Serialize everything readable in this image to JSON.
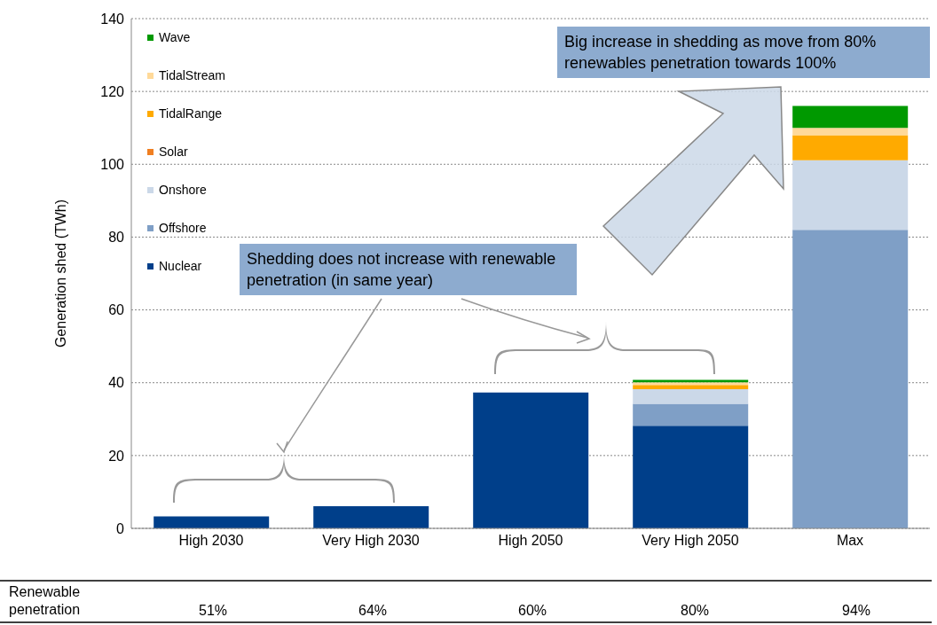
{
  "chart_data": {
    "type": "bar",
    "stacked": true,
    "ylabel": "Generation shed (TWh)",
    "categories": [
      "High 2030",
      "Very High 2030",
      "High 2050",
      "Very High 2050",
      "Max"
    ],
    "series": [
      {
        "name": "Nuclear",
        "color": "#003f8a",
        "values": [
          3.3,
          6.1,
          37.3,
          28.2,
          0
        ]
      },
      {
        "name": "Offshore",
        "color": "#7f9fc6",
        "values": [
          0,
          0,
          0,
          6.0,
          82.0
        ]
      },
      {
        "name": "Onshore",
        "color": "#cbd8e8",
        "values": [
          0,
          0,
          0,
          4.0,
          19.1
        ]
      },
      {
        "name": "Solar",
        "color": "#f07f21",
        "values": [
          0,
          0,
          0,
          0,
          0
        ]
      },
      {
        "name": "TidalRange",
        "color": "#ffaa00",
        "values": [
          0,
          0,
          0,
          1.2,
          6.9
        ]
      },
      {
        "name": "TidalStream",
        "color": "#ffd999",
        "values": [
          0,
          0,
          0,
          0.7,
          2.0
        ]
      },
      {
        "name": "Wave",
        "color": "#009900",
        "values": [
          0,
          0,
          0,
          0.7,
          6.0
        ]
      }
    ],
    "ylim": [
      0,
      140
    ],
    "yticks": [
      0,
      20,
      40,
      60,
      80,
      100,
      120,
      140
    ],
    "grid": "y",
    "legend": "top left",
    "annotations": [
      "Big increase in shedding as move from 80% renewables penetration towards 100%",
      "Shedding does not increase with renewable penetration (in same year)",
      "Renewable penetration",
      "51%",
      "64%",
      "60%",
      "80%",
      "94%"
    ]
  }
}
